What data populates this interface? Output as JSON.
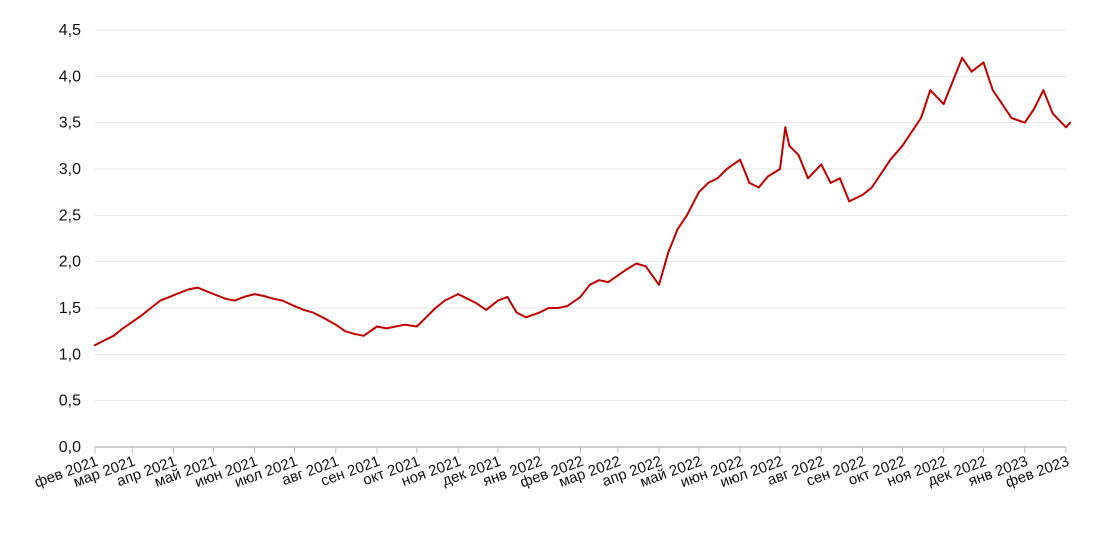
{
  "chart_data": {
    "type": "line",
    "title": "",
    "xlabel": "",
    "ylabel": "",
    "ylim": [
      0,
      4.5
    ],
    "y_ticks": [
      "0,0",
      "0,5",
      "1,0",
      "1,5",
      "2,0",
      "2,5",
      "3,0",
      "3,5",
      "4,0",
      "4,5"
    ],
    "y_tick_values": [
      0,
      0.5,
      1.0,
      1.5,
      2.0,
      2.5,
      3.0,
      3.5,
      4.0,
      4.5
    ],
    "x_ticks": [
      "фев 2021",
      "мар 2021",
      "апр 2021",
      "май 2021",
      "июн 2021",
      "июл 2021",
      "авг 2021",
      "сен 2021",
      "окт 2021",
      "ноя 2021",
      "дек 2021",
      "янв 2022",
      "фев 2022",
      "мар 2022",
      "апр 2022",
      "май 2022",
      "июн 2022",
      "июл 2022",
      "авг 2022",
      "сен 2022",
      "окт 2022",
      "ноя 2022",
      "дек 2022",
      "янв 2023",
      "фев 2023"
    ],
    "x_tick_dates": [
      "2021-02-01",
      "2021-03-01",
      "2021-04-01",
      "2021-05-01",
      "2021-06-01",
      "2021-07-01",
      "2021-08-01",
      "2021-09-01",
      "2021-10-01",
      "2021-11-01",
      "2021-12-01",
      "2022-01-01",
      "2022-02-01",
      "2022-03-01",
      "2022-04-01",
      "2022-05-01",
      "2022-06-01",
      "2022-07-01",
      "2022-08-01",
      "2022-09-01",
      "2022-10-01",
      "2022-11-01",
      "2022-12-01",
      "2023-01-01",
      "2023-02-01"
    ],
    "grid": true,
    "legend": "none",
    "line_color": "#c00000",
    "series": [
      {
        "x": [
          "2021-02-01",
          "2021-02-08",
          "2021-02-15",
          "2021-02-22",
          "2021-03-01",
          "2021-03-08",
          "2021-03-15",
          "2021-03-22",
          "2021-03-29",
          "2021-04-05",
          "2021-04-12",
          "2021-04-19",
          "2021-04-26",
          "2021-05-03",
          "2021-05-10",
          "2021-05-17",
          "2021-05-24",
          "2021-06-01",
          "2021-06-08",
          "2021-06-15",
          "2021-06-22",
          "2021-07-01",
          "2021-07-08",
          "2021-07-15",
          "2021-07-22",
          "2021-08-01",
          "2021-08-08",
          "2021-08-15",
          "2021-08-22",
          "2021-09-01",
          "2021-09-08",
          "2021-09-15",
          "2021-09-22",
          "2021-10-01",
          "2021-10-08",
          "2021-10-15",
          "2021-10-22",
          "2021-11-01",
          "2021-11-08",
          "2021-11-15",
          "2021-11-22",
          "2021-12-01",
          "2021-12-08",
          "2021-12-15",
          "2021-12-22",
          "2022-01-01",
          "2022-01-08",
          "2022-01-15",
          "2022-01-22",
          "2022-02-01",
          "2022-02-08",
          "2022-02-15",
          "2022-02-22",
          "2022-03-01",
          "2022-03-08",
          "2022-03-15",
          "2022-03-22",
          "2022-04-01",
          "2022-04-08",
          "2022-04-15",
          "2022-04-22",
          "2022-05-01",
          "2022-05-08",
          "2022-05-15",
          "2022-05-22",
          "2022-06-01",
          "2022-06-08",
          "2022-06-15",
          "2022-06-22",
          "2022-07-01",
          "2022-07-05",
          "2022-07-08",
          "2022-07-15",
          "2022-07-22",
          "2022-08-01",
          "2022-08-08",
          "2022-08-15",
          "2022-08-22",
          "2022-09-01",
          "2022-09-08",
          "2022-09-15",
          "2022-09-22",
          "2022-10-01",
          "2022-10-08",
          "2022-10-15",
          "2022-10-22",
          "2022-11-01",
          "2022-11-08",
          "2022-11-15",
          "2022-11-22",
          "2022-12-01",
          "2022-12-08",
          "2022-12-15",
          "2022-12-22",
          "2023-01-01",
          "2023-01-08",
          "2023-01-15",
          "2023-01-22",
          "2023-02-01",
          "2023-02-04"
        ],
        "y": [
          1.1,
          1.15,
          1.2,
          1.28,
          1.35,
          1.42,
          1.5,
          1.58,
          1.62,
          1.66,
          1.7,
          1.72,
          1.68,
          1.64,
          1.6,
          1.58,
          1.62,
          1.65,
          1.63,
          1.6,
          1.58,
          1.52,
          1.48,
          1.45,
          1.4,
          1.32,
          1.25,
          1.22,
          1.2,
          1.3,
          1.28,
          1.3,
          1.32,
          1.3,
          1.4,
          1.5,
          1.58,
          1.65,
          1.6,
          1.55,
          1.48,
          1.58,
          1.62,
          1.45,
          1.4,
          1.45,
          1.5,
          1.5,
          1.52,
          1.62,
          1.75,
          1.8,
          1.78,
          1.85,
          1.92,
          1.98,
          1.95,
          1.75,
          2.1,
          2.35,
          2.5,
          2.75,
          2.85,
          2.9,
          3.0,
          3.1,
          2.85,
          2.8,
          2.92,
          3.0,
          3.45,
          3.25,
          3.15,
          2.9,
          3.05,
          2.85,
          2.9,
          2.65,
          2.72,
          2.8,
          2.95,
          3.1,
          3.25,
          3.4,
          3.55,
          3.85,
          3.7,
          3.95,
          4.2,
          4.05,
          4.15,
          3.85,
          3.7,
          3.55,
          3.5,
          3.65,
          3.85,
          3.6,
          3.45,
          3.5
        ]
      }
    ]
  }
}
